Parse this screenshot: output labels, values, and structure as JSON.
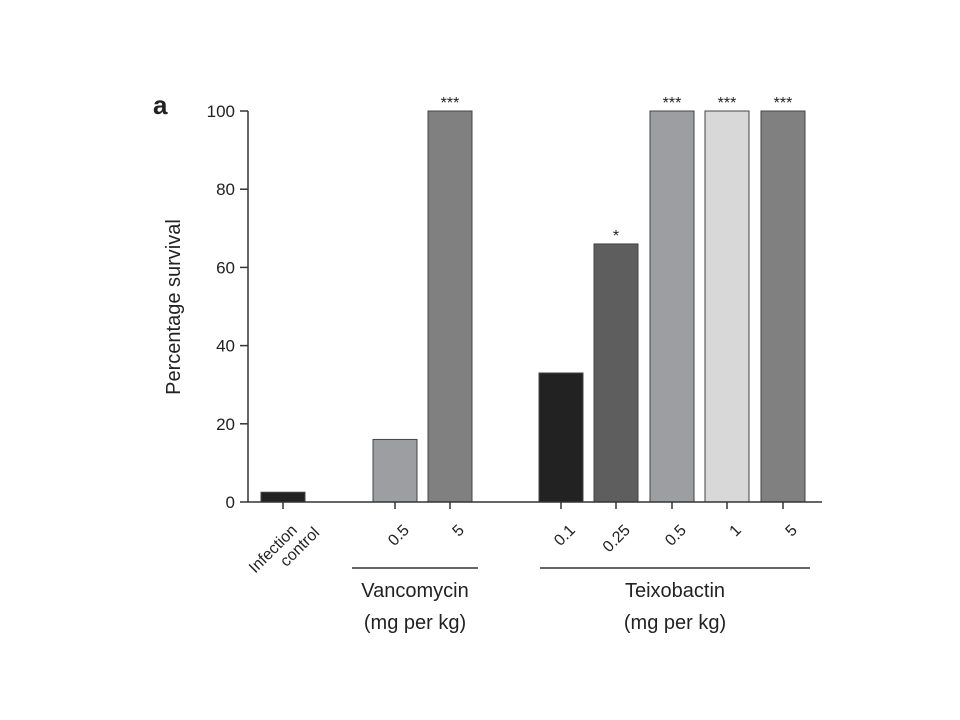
{
  "chart_data": {
    "type": "bar",
    "panel_label": "a",
    "ylabel": "Percentage survival",
    "ylim": [
      0,
      100
    ],
    "yticks": [
      0,
      20,
      40,
      60,
      80,
      100
    ],
    "grid": false,
    "categories": [
      {
        "label": [
          "Infection",
          "control"
        ],
        "value": 2.5,
        "color": "#222222",
        "annotation": "",
        "group": null
      },
      {
        "label": [
          "0.5"
        ],
        "value": 16,
        "color": "#9c9ea2",
        "annotation": "",
        "group": 0
      },
      {
        "label": [
          "5"
        ],
        "value": 100,
        "color": "#808080",
        "annotation": "***",
        "group": 0
      },
      {
        "label": [
          "0.1"
        ],
        "value": 33,
        "color": "#222222",
        "annotation": "",
        "group": 1
      },
      {
        "label": [
          "0.25"
        ],
        "value": 66,
        "color": "#5e5e5e",
        "annotation": "*",
        "group": 1
      },
      {
        "label": [
          "0.5"
        ],
        "value": 100,
        "color": "#9c9ea2",
        "annotation": "***",
        "group": 1
      },
      {
        "label": [
          "1"
        ],
        "value": 100,
        "color": "#d8d8d8",
        "annotation": "***",
        "group": 1
      },
      {
        "label": [
          "5"
        ],
        "value": 100,
        "color": "#808080",
        "annotation": "***",
        "group": 1
      }
    ],
    "groups": [
      {
        "name": "Vancomycin",
        "unit": "(mg per kg)"
      },
      {
        "name": "Teixobactin",
        "unit": "(mg per kg)"
      }
    ]
  }
}
